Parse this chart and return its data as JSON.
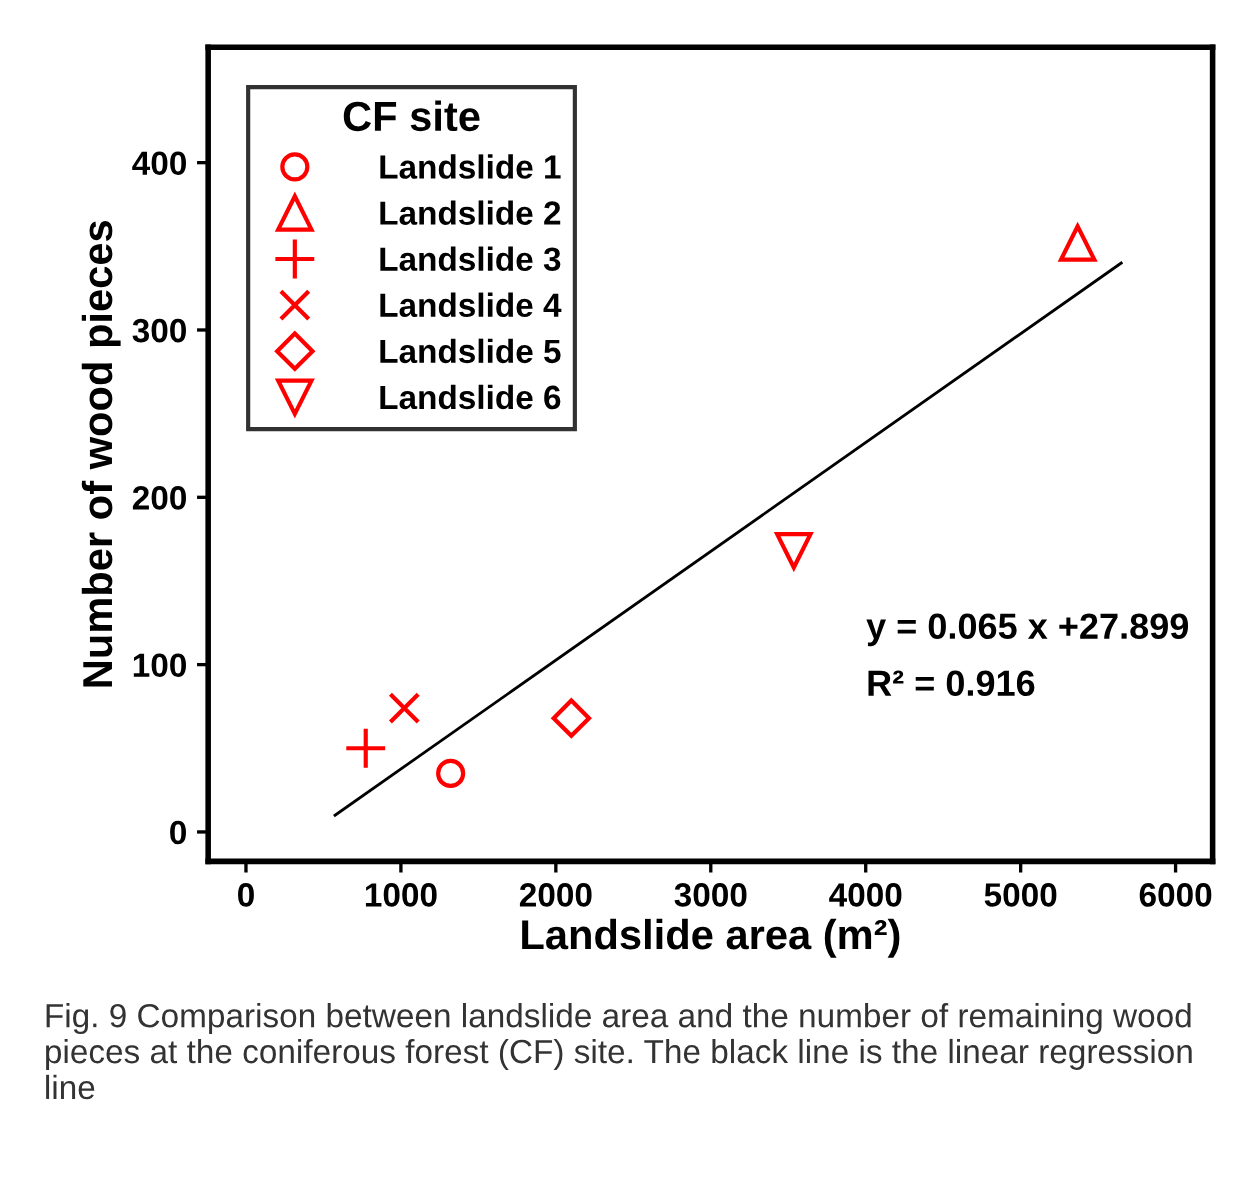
{
  "chart_data": {
    "type": "scatter",
    "xlabel": "Landslide area (m²)",
    "ylabel": "Number of wood pieces",
    "legend_title": "CF site",
    "legend": "top left",
    "grid": false,
    "xlim": [
      -244,
      6239
    ],
    "ylim": [
      -17.6,
      469
    ],
    "xticks": [
      0,
      1000,
      2000,
      3000,
      4000,
      5000,
      6000
    ],
    "yticks": [
      0,
      100,
      200,
      300,
      400
    ],
    "series": [
      {
        "name": "Landslide 1",
        "color": "#ff0000",
        "marker": "circle",
        "x": [
          1321
        ],
        "values": [
          35
        ]
      },
      {
        "name": "Landslide 2",
        "color": "#ff0000",
        "marker": "triangle",
        "x": [
          5368
        ],
        "values": [
          352
        ]
      },
      {
        "name": "Landslide 3",
        "color": "#ff0000",
        "marker": "plus",
        "x": [
          773
        ],
        "values": [
          50
        ]
      },
      {
        "name": "Landslide 4",
        "color": "#ff0000",
        "marker": "cross",
        "x": [
          1022
        ],
        "values": [
          74
        ]
      },
      {
        "name": "Landslide 5",
        "color": "#ff0000",
        "marker": "diamond",
        "x": [
          2100
        ],
        "values": [
          68
        ]
      },
      {
        "name": "Landslide 6",
        "color": "#ff0000",
        "marker": "triangle_down",
        "x": [
          3536
        ],
        "values": [
          168
        ]
      },
      {
        "type": "line",
        "color": "#000000",
        "marker": "none",
        "line_style": "solid",
        "x": [
          575,
          5649
        ],
        "values": [
          10,
          340
        ]
      }
    ],
    "annotations": [
      "y = 0.065 x +27.899",
      "R² = 0.916",
      "Fig. 9 Comparison between landslide area and the number of remaining wood pieces at the coniferous forest (CF) site. The black line is the linear regression line"
    ]
  }
}
